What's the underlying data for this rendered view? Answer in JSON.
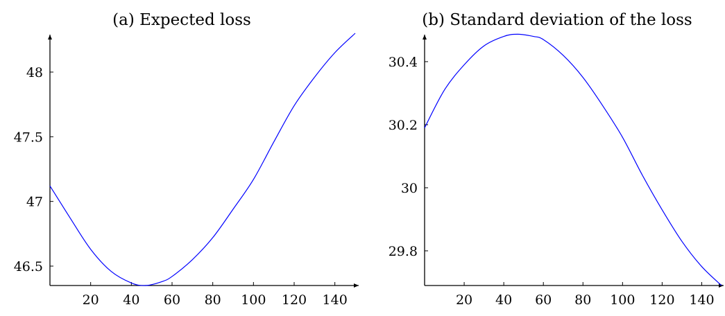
{
  "chart_data": [
    {
      "type": "line",
      "title": "(a) Expected loss",
      "xlabel": "",
      "ylabel": "",
      "xlim": [
        0,
        150
      ],
      "ylim": [
        46.35,
        48.3
      ],
      "xticks": [
        20,
        40,
        60,
        80,
        100,
        120,
        140
      ],
      "yticks": [
        46.5,
        47,
        47.5,
        48
      ],
      "grid": false,
      "color": "#0000ff",
      "series": [
        {
          "x": [
            0,
            10,
            20,
            30,
            40,
            47,
            55,
            60,
            70,
            80,
            90,
            100,
            110,
            120,
            130,
            140,
            150
          ],
          "y": [
            47.12,
            46.87,
            46.63,
            46.46,
            46.37,
            46.35,
            46.38,
            46.42,
            46.55,
            46.72,
            46.94,
            47.17,
            47.46,
            47.74,
            47.96,
            48.15,
            48.3
          ]
        }
      ]
    },
    {
      "type": "line",
      "title": "(b) Standard deviation of the loss",
      "xlabel": "",
      "ylabel": "",
      "xlim": [
        0,
        150
      ],
      "ylim": [
        29.69,
        30.49
      ],
      "xticks": [
        20,
        40,
        60,
        80,
        100,
        120,
        140
      ],
      "yticks": [
        29.8,
        30,
        30.2,
        30.4
      ],
      "grid": false,
      "color": "#0000ff",
      "series": [
        {
          "x": [
            0,
            10,
            20,
            30,
            40,
            47,
            55,
            60,
            70,
            80,
            90,
            100,
            110,
            120,
            130,
            140,
            150
          ],
          "y": [
            30.19,
            30.31,
            30.39,
            30.45,
            30.48,
            30.487,
            30.48,
            30.47,
            30.42,
            30.35,
            30.26,
            30.16,
            30.04,
            29.93,
            29.83,
            29.75,
            29.69
          ]
        }
      ]
    }
  ]
}
